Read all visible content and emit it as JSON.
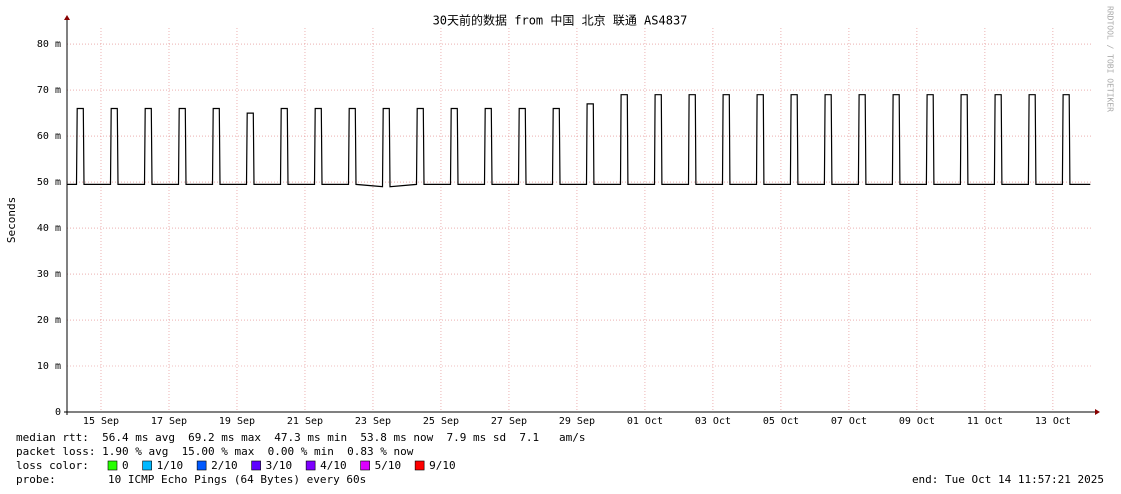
{
  "chart_data": {
    "type": "line",
    "title": "30天前的数据 from 中国 北京 联通 AS4837",
    "y_label": "Seconds",
    "side_label": "RRDTOOL / TOBI OETIKER",
    "color": "#000000",
    "grid": true,
    "xlim": [
      0,
      30.15
    ],
    "xticks": [
      {
        "value": 1,
        "label": "15 Sep"
      },
      {
        "value": 3,
        "label": "17 Sep"
      },
      {
        "value": 5,
        "label": "19 Sep"
      },
      {
        "value": 7,
        "label": "21 Sep"
      },
      {
        "value": 9,
        "label": "23 Sep"
      },
      {
        "value": 11,
        "label": "25 Sep"
      },
      {
        "value": 13,
        "label": "27 Sep"
      },
      {
        "value": 15,
        "label": "29 Sep"
      },
      {
        "value": 17,
        "label": "01 Oct"
      },
      {
        "value": 19,
        "label": "03 Oct"
      },
      {
        "value": 21,
        "label": "05 Oct"
      },
      {
        "value": 23,
        "label": "07 Oct"
      },
      {
        "value": 25,
        "label": "09 Oct"
      },
      {
        "value": 27,
        "label": "11 Oct"
      },
      {
        "value": 29,
        "label": "13 Oct"
      }
    ],
    "ylim": [
      0,
      0.0835
    ],
    "yticks": [
      0,
      {
        "value": 0.01,
        "label": "10 m"
      },
      {
        "value": 0.02,
        "label": "20 m"
      },
      {
        "value": 0.03,
        "label": "30 m"
      },
      {
        "value": 0.04,
        "label": "40 m"
      },
      {
        "value": 0.05,
        "label": "50 m"
      },
      {
        "value": 0.06,
        "label": "60 m"
      },
      {
        "value": 0.07,
        "label": "70 m"
      },
      {
        "value": 0.08,
        "label": "80 m"
      }
    ],
    "x": [
      0,
      0.28,
      0.3,
      0.48,
      0.5,
      1.28,
      1.3,
      1.48,
      1.5,
      2.28,
      2.3,
      2.48,
      2.5,
      3.28,
      3.3,
      3.48,
      3.5,
      4.28,
      4.3,
      4.48,
      4.5,
      5.28,
      5.3,
      5.48,
      5.5,
      6.28,
      6.3,
      6.48,
      6.5,
      7.28,
      7.3,
      7.48,
      7.5,
      8.28,
      8.3,
      8.48,
      8.5,
      9.28,
      9.3,
      9.48,
      9.5,
      10.28,
      10.3,
      10.48,
      10.5,
      11.28,
      11.3,
      11.48,
      11.5,
      12.28,
      12.3,
      12.48,
      12.5,
      13.28,
      13.3,
      13.48,
      13.5,
      14.28,
      14.3,
      14.48,
      14.5,
      15.28,
      15.3,
      15.48,
      15.5,
      16.28,
      16.3,
      16.48,
      16.5,
      17.28,
      17.3,
      17.48,
      17.5,
      18.28,
      18.3,
      18.48,
      18.5,
      19.28,
      19.3,
      19.48,
      19.5,
      20.28,
      20.3,
      20.48,
      20.5,
      21.28,
      21.3,
      21.48,
      21.5,
      22.28,
      22.3,
      22.48,
      22.5,
      23.28,
      23.3,
      23.48,
      23.5,
      24.28,
      24.3,
      24.48,
      24.5,
      25.28,
      25.3,
      25.48,
      25.5,
      26.28,
      26.3,
      26.48,
      26.5,
      27.28,
      27.3,
      27.48,
      27.5,
      28.28,
      28.3,
      28.48,
      28.5,
      29.28,
      29.3,
      29.48,
      29.5,
      30.1
    ],
    "values": [
      0.0495,
      0.0495,
      0.066,
      0.066,
      0.0495,
      0.0495,
      0.066,
      0.066,
      0.0495,
      0.0495,
      0.066,
      0.066,
      0.0495,
      0.0495,
      0.066,
      0.066,
      0.0495,
      0.0495,
      0.066,
      0.066,
      0.0495,
      0.0495,
      0.065,
      0.065,
      0.0495,
      0.0495,
      0.066,
      0.066,
      0.0495,
      0.0495,
      0.066,
      0.066,
      0.0495,
      0.0495,
      0.066,
      0.066,
      0.0495,
      0.049,
      0.066,
      0.066,
      0.049,
      0.0495,
      0.066,
      0.066,
      0.0495,
      0.0495,
      0.066,
      0.066,
      0.0495,
      0.0495,
      0.066,
      0.066,
      0.0495,
      0.0495,
      0.066,
      0.066,
      0.0495,
      0.0495,
      0.066,
      0.066,
      0.0495,
      0.0495,
      0.067,
      0.067,
      0.0495,
      0.0495,
      0.069,
      0.069,
      0.0495,
      0.0495,
      0.069,
      0.069,
      0.0495,
      0.0495,
      0.069,
      0.069,
      0.0495,
      0.0495,
      0.069,
      0.069,
      0.0495,
      0.0495,
      0.069,
      0.069,
      0.0495,
      0.0495,
      0.069,
      0.069,
      0.0495,
      0.0495,
      0.069,
      0.069,
      0.0495,
      0.0495,
      0.069,
      0.069,
      0.0495,
      0.0495,
      0.069,
      0.069,
      0.0495,
      0.0495,
      0.069,
      0.069,
      0.0495,
      0.0495,
      0.069,
      0.069,
      0.0495,
      0.0495,
      0.069,
      0.069,
      0.0495,
      0.0495,
      0.069,
      0.069,
      0.0495,
      0.0495,
      0.069,
      0.069,
      0.0495,
      0.0495
    ],
    "median_rtt": "median rtt:  56.4 ms avg  69.2 ms max  47.3 ms min  53.8 ms now  7.9 ms sd  7.1   am/s",
    "packet_loss": "packet loss: 1.90 % avg  15.00 % max  0.00 % min  0.83 % now",
    "loss_color_label": "loss color:",
    "loss_colors": [
      {
        "label": "0",
        "color": "#26ff00"
      },
      {
        "label": "1/10",
        "color": "#00b8ff"
      },
      {
        "label": "2/10",
        "color": "#0059ff"
      },
      {
        "label": "3/10",
        "color": "#5e00ff"
      },
      {
        "label": "4/10",
        "color": "#7e00ff"
      },
      {
        "label": "5/10",
        "color": "#dd00ff"
      },
      {
        "label": "9/10",
        "color": "#ff0000"
      }
    ],
    "probe_label": "probe:",
    "probe": "10 ICMP Echo Pings (64 Bytes) every 60s",
    "end": "end: Tue Oct 14 11:57:21 2025"
  }
}
